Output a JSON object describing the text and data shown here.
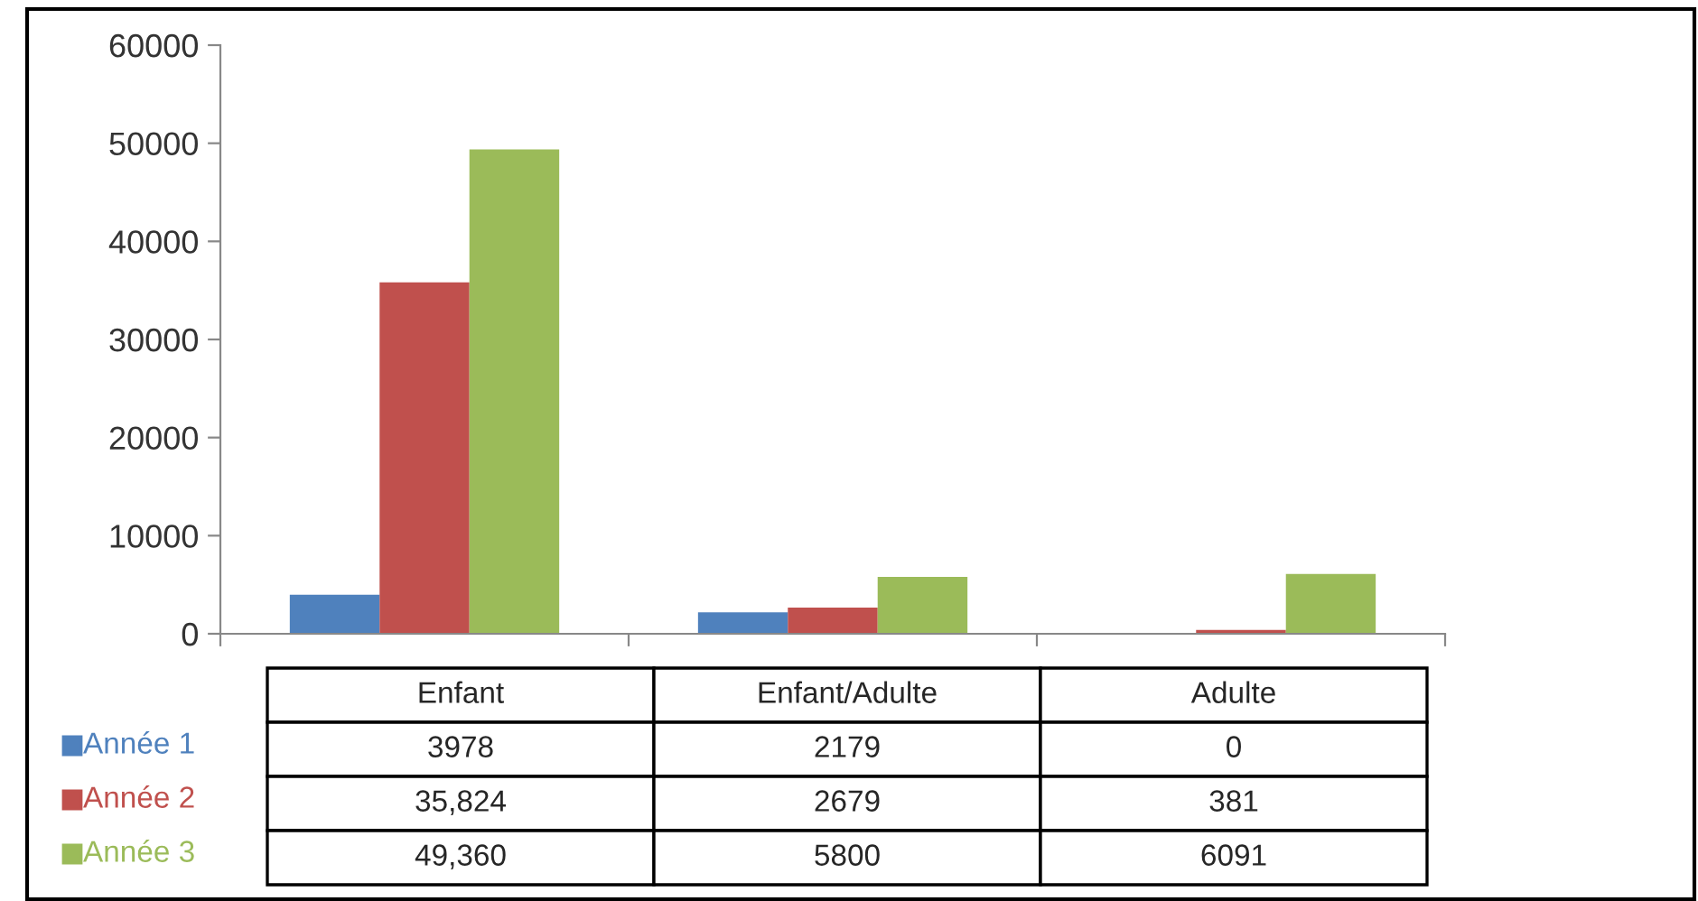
{
  "chart_data": {
    "type": "bar",
    "categories": [
      "Enfant",
      "Enfant/Adulte",
      "Adulte"
    ],
    "series": [
      {
        "name": "Année 1",
        "color": "#4f81bd",
        "values": [
          3978,
          2179,
          0
        ],
        "value_labels": [
          "3978",
          "2179",
          "0"
        ]
      },
      {
        "name": "Année 2",
        "color": "#c0504d",
        "values": [
          35824,
          2679,
          381
        ],
        "value_labels": [
          "35,824",
          "2679",
          "381"
        ]
      },
      {
        "name": "Année 3",
        "color": "#9bbb59",
        "values": [
          49360,
          5800,
          6091
        ],
        "value_labels": [
          "49,360",
          "5800",
          "6091"
        ]
      }
    ],
    "ylim": [
      0,
      60000
    ],
    "yticks": [
      0,
      10000,
      20000,
      30000,
      40000,
      50000,
      60000
    ],
    "tick_labels": "y",
    "grid": false,
    "legend": "bottom left"
  }
}
